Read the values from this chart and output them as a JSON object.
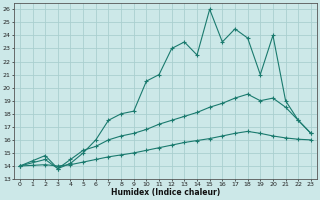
{
  "xlabel": "Humidex (Indice chaleur)",
  "xlim": [
    -0.5,
    23.5
  ],
  "ylim": [
    13,
    26.5
  ],
  "xticks": [
    0,
    1,
    2,
    3,
    4,
    5,
    6,
    7,
    8,
    9,
    10,
    11,
    12,
    13,
    14,
    15,
    16,
    17,
    18,
    19,
    20,
    21,
    22,
    23
  ],
  "yticks": [
    13,
    14,
    15,
    16,
    17,
    18,
    19,
    20,
    21,
    22,
    23,
    24,
    25,
    26
  ],
  "bg_color": "#cce8e8",
  "grid_color": "#aacfcf",
  "line_color": "#1a7a6e",
  "line1_x": [
    0,
    1,
    2,
    3,
    4,
    5,
    6,
    7,
    8,
    9,
    10,
    11,
    12,
    13,
    14,
    15,
    16,
    17,
    18,
    19,
    20,
    21,
    22,
    23
  ],
  "line1_y": [
    14,
    14.4,
    14.8,
    13.8,
    14.2,
    15.0,
    16.0,
    17.5,
    18.0,
    18.2,
    20.5,
    21.0,
    23.0,
    23.5,
    22.5,
    26.0,
    23.5,
    24.5,
    23.8,
    21.0,
    24.0,
    19.0,
    17.5,
    16.5
  ],
  "line2_x": [
    0,
    2,
    3,
    4,
    5,
    6,
    7,
    8,
    9,
    10,
    11,
    12,
    13,
    14,
    15,
    16,
    17,
    18,
    19,
    20,
    21,
    22,
    23
  ],
  "line2_y": [
    14,
    14.5,
    13.8,
    14.5,
    15.2,
    15.5,
    16.0,
    16.3,
    16.5,
    16.8,
    17.2,
    17.5,
    17.8,
    18.1,
    18.5,
    18.8,
    19.2,
    19.5,
    19.0,
    19.2,
    18.5,
    17.5,
    16.5
  ],
  "line3_x": [
    0,
    1,
    2,
    3,
    4,
    5,
    6,
    7,
    8,
    9,
    10,
    11,
    12,
    13,
    14,
    15,
    16,
    17,
    18,
    19,
    20,
    21,
    22,
    23
  ],
  "line3_y": [
    14,
    14.05,
    14.1,
    14.0,
    14.1,
    14.3,
    14.5,
    14.7,
    14.85,
    15.0,
    15.2,
    15.4,
    15.6,
    15.8,
    15.95,
    16.1,
    16.3,
    16.5,
    16.65,
    16.5,
    16.3,
    16.15,
    16.05,
    16.0
  ]
}
